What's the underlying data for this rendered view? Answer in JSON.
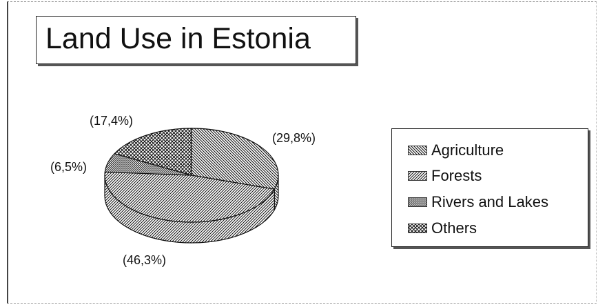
{
  "chart_data": {
    "type": "pie",
    "title": "Land Use in Estonia",
    "categories": [
      "Agriculture",
      "Forests",
      "Rivers and Lakes",
      "Others"
    ],
    "values": [
      29.8,
      46.3,
      6.5,
      17.4
    ],
    "data_labels": [
      "(29,8%)",
      "(46,3%)",
      "(6,5%)",
      "(17,4%)"
    ],
    "three_d": true,
    "legend": "right"
  },
  "patterns": {
    "Agriculture": "diagonal-hatch-backslash",
    "Forests": "diagonal-hatch-slash",
    "Rivers and Lakes": "dense-crosshatch",
    "Others": "crosshatch"
  },
  "colors": {
    "ink": "#111111",
    "paper": "#ffffff"
  }
}
